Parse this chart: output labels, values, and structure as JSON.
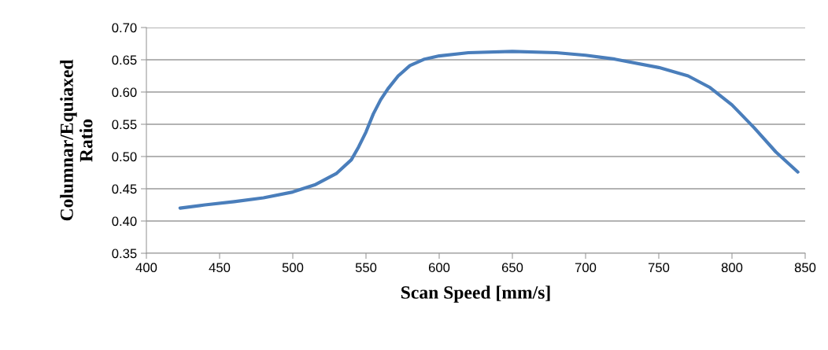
{
  "chart_data": {
    "type": "line",
    "xlabel": "Scan Speed [mm/s]",
    "ylabel": "Columnar/Equiaxed\nRatio",
    "series": [
      {
        "color": "#4a7ebb",
        "x": [
          423,
          440,
          460,
          480,
          500,
          515,
          530,
          540,
          545,
          550,
          555,
          560,
          565,
          572,
          580,
          590,
          600,
          620,
          650,
          680,
          700,
          720,
          750,
          770,
          785,
          800,
          815,
          830,
          845
        ],
        "values": [
          0.42,
          0.425,
          0.43,
          0.436,
          0.445,
          0.456,
          0.474,
          0.495,
          0.515,
          0.538,
          0.566,
          0.588,
          0.605,
          0.625,
          0.641,
          0.651,
          0.656,
          0.661,
          0.663,
          0.661,
          0.657,
          0.651,
          0.638,
          0.625,
          0.607,
          0.58,
          0.545,
          0.507,
          0.476
        ]
      }
    ],
    "xlim": [
      400,
      850
    ],
    "xticks": [
      400,
      450,
      500,
      550,
      600,
      650,
      700,
      750,
      800,
      850
    ],
    "ylim": [
      0.35,
      0.7
    ],
    "yticks": [
      {
        "value": 0.35,
        "label": "0.35"
      },
      {
        "value": 0.4,
        "label": "0.40"
      },
      {
        "value": 0.45,
        "label": "0.45"
      },
      {
        "value": 0.5,
        "label": "0.50"
      },
      {
        "value": 0.55,
        "label": "0.55"
      },
      {
        "value": 0.6,
        "label": "0.60"
      },
      {
        "value": 0.65,
        "label": "0.65"
      },
      {
        "value": 0.7,
        "label": "0.70"
      }
    ],
    "grid": "y",
    "marker": "none",
    "line_style": "solid"
  }
}
